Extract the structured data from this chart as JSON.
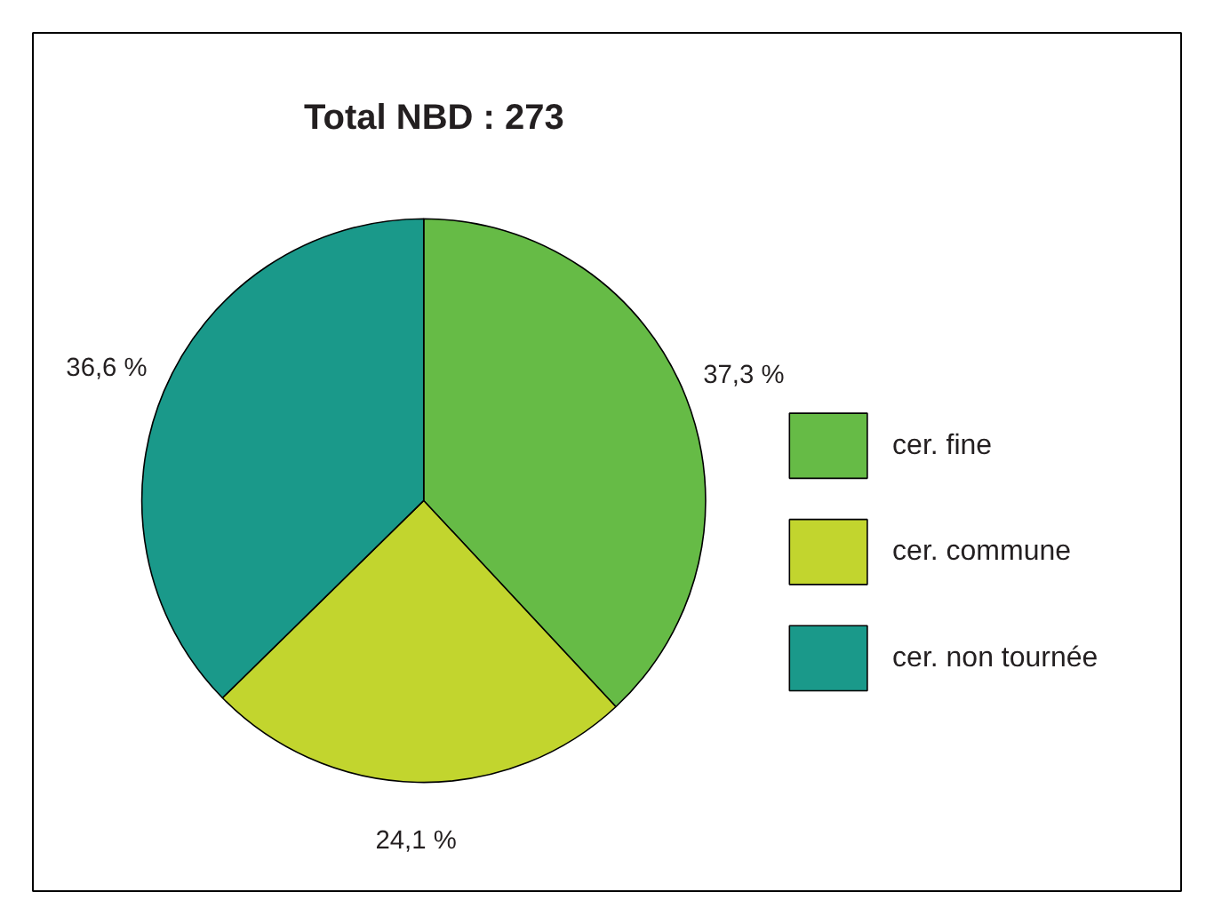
{
  "chart_data": {
    "type": "pie",
    "title": "Total NBD : 273",
    "categories": [
      "cer. fine",
      "cer. commune",
      "cer. non tournée"
    ],
    "values": [
      37.3,
      24.1,
      36.6
    ],
    "colors": [
      "#66bb46",
      "#c2d52e",
      "#1a998a"
    ],
    "value_labels": [
      "37,3 %",
      "24,1 %",
      "36,6 %"
    ],
    "legend": "right"
  }
}
